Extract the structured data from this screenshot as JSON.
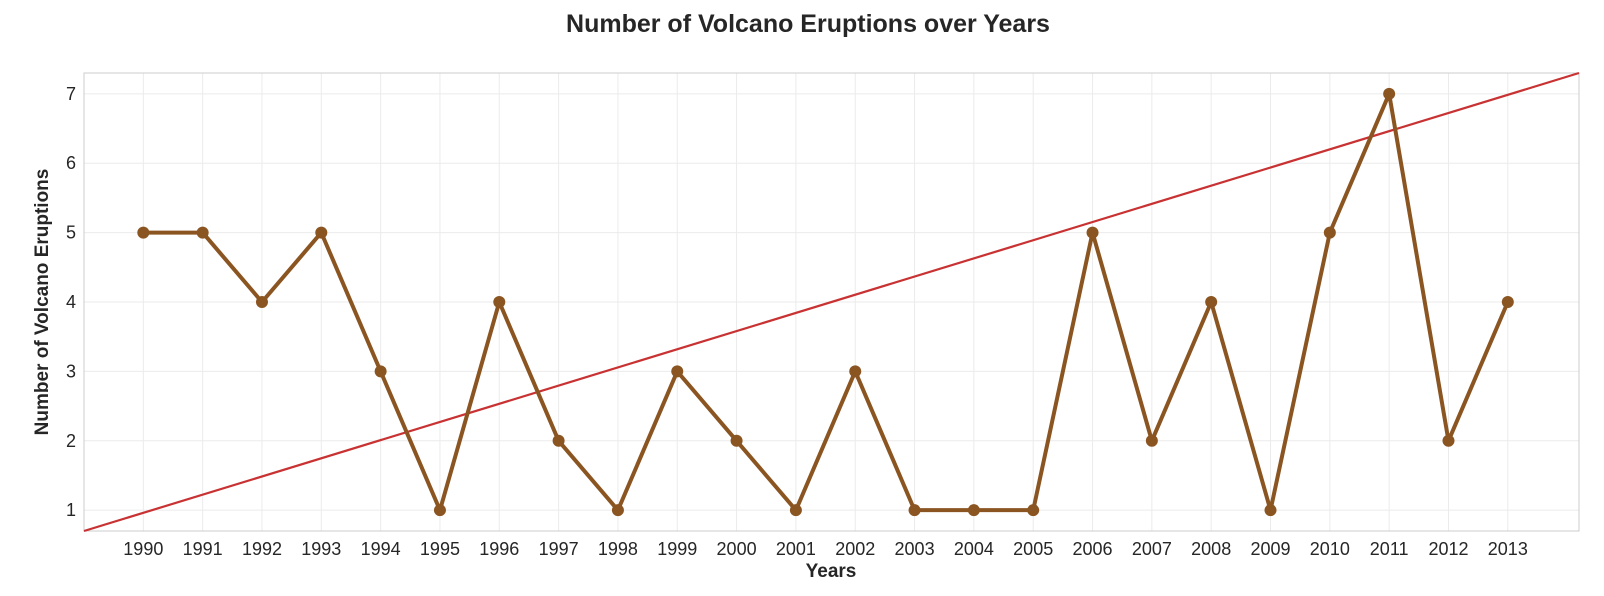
{
  "chart_data": {
    "type": "line",
    "title": "Number of Volcano Eruptions over Years",
    "xlabel": "Years",
    "ylabel": "Number of Volcano Eruptions",
    "x": [
      1990,
      1991,
      1992,
      1993,
      1994,
      1995,
      1996,
      1997,
      1998,
      1999,
      2000,
      2001,
      2002,
      2003,
      2004,
      2005,
      2006,
      2007,
      2008,
      2009,
      2010,
      2011,
      2012,
      2013
    ],
    "series": [
      {
        "values": [
          5,
          5,
          4,
          5,
          3,
          1,
          4,
          2,
          1,
          3,
          2,
          1,
          3,
          1,
          1,
          1,
          5,
          2,
          4,
          1,
          5,
          7,
          2,
          4
        ],
        "color": "#8b5522",
        "marker": "circle"
      }
    ],
    "trendline": {
      "color": "#c83232",
      "start": {
        "x": 1989,
        "y": 0.7
      },
      "end": {
        "x": 2014.2,
        "y": 7.3
      }
    },
    "xticks": [
      1990,
      1991,
      1992,
      1993,
      1994,
      1995,
      1996,
      1997,
      1998,
      1999,
      2000,
      2001,
      2002,
      2003,
      2004,
      2005,
      2006,
      2007,
      2008,
      2009,
      2010,
      2011,
      2012,
      2013
    ],
    "yticks": [
      1,
      2,
      3,
      4,
      5,
      6,
      7
    ],
    "xlim": [
      1989,
      2014.2
    ],
    "ylim": [
      0.7,
      7.3
    ],
    "grid": true,
    "background": "#ffffff",
    "grid_color": "#ebebeb",
    "frame_color": "#cccccc"
  }
}
